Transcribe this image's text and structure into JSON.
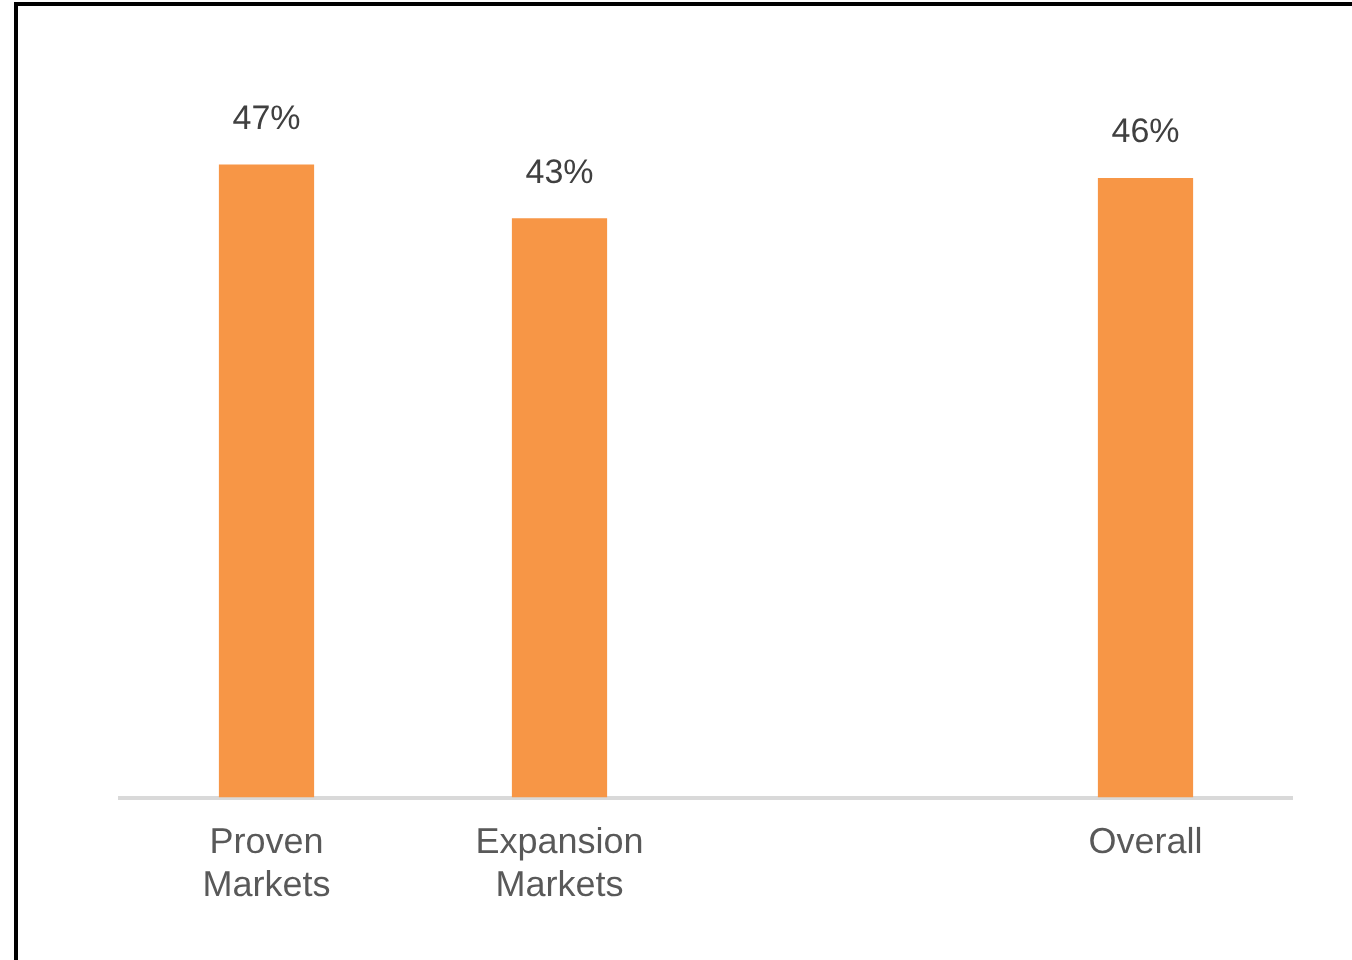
{
  "chart_data": {
    "type": "bar",
    "categories": [
      "Proven Markets",
      "Expansion Markets",
      null,
      "Overall"
    ],
    "values": [
      47,
      43,
      null,
      46
    ],
    "value_labels": [
      "47%",
      "43%",
      null,
      "46%"
    ],
    "color": "#f79646",
    "grid": false,
    "legend": false
  }
}
